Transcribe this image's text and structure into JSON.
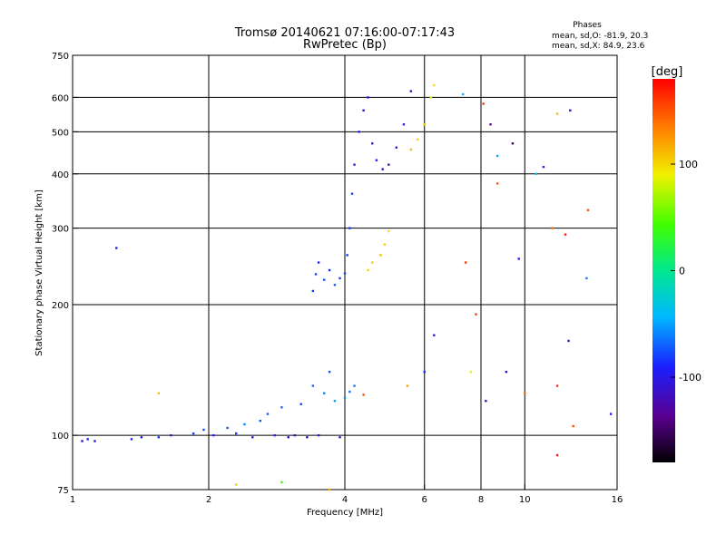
{
  "chart_data": {
    "type": "scatter",
    "title": "Tromsø 20140621 07:16:00-07:17:43",
    "subtitle": "RwPretec (Bp)",
    "xlabel": "Frequency [MHz]",
    "ylabel": "Stationary phase Virtual Height [km]",
    "x_scale": "log",
    "y_scale": "log",
    "xlim": [
      1,
      16
    ],
    "ylim": [
      75,
      750
    ],
    "x_ticks": [
      1,
      2,
      4,
      6,
      8,
      10,
      16
    ],
    "x_tick_labels": [
      "1",
      "2",
      "4",
      "6",
      "8",
      "10",
      "16"
    ],
    "y_ticks": [
      75,
      100,
      200,
      300,
      400,
      500,
      600,
      750
    ],
    "y_tick_labels": [
      "75",
      "100",
      "200",
      "300",
      "400",
      "500",
      "600",
      "750"
    ],
    "x_grid": [
      2,
      4,
      6,
      8,
      10
    ],
    "y_grid": [
      100,
      200,
      300,
      400,
      500,
      600
    ],
    "grid": true,
    "phase_stats": {
      "heading": "Phases",
      "line_o": "mean, sd,O: -81.9, 20.3",
      "line_x": "mean, sd,X:  84.9, 23.6"
    },
    "colorbar": {
      "label": "[deg]",
      "min": -180,
      "max": 180,
      "ticks": [
        100,
        0,
        -100
      ],
      "tick_labels": [
        "100",
        "0",
        "-100"
      ],
      "colormap": "rainbow"
    },
    "series": [
      {
        "values": [
          {
            "x": 1.05,
            "y": 97,
            "phase": -100
          },
          {
            "x": 1.08,
            "y": 98,
            "phase": -90
          },
          {
            "x": 1.12,
            "y": 97,
            "phase": -105
          },
          {
            "x": 1.35,
            "y": 98,
            "phase": -95
          },
          {
            "x": 1.42,
            "y": 99,
            "phase": -100
          },
          {
            "x": 1.55,
            "y": 99,
            "phase": -85
          },
          {
            "x": 1.65,
            "y": 100,
            "phase": -95
          },
          {
            "x": 1.85,
            "y": 101,
            "phase": -80
          },
          {
            "x": 1.95,
            "y": 103,
            "phase": -75
          },
          {
            "x": 2.05,
            "y": 100,
            "phase": -90
          },
          {
            "x": 2.2,
            "y": 104,
            "phase": -70
          },
          {
            "x": 2.3,
            "y": 101,
            "phase": -85
          },
          {
            "x": 2.4,
            "y": 106,
            "phase": -60
          },
          {
            "x": 2.5,
            "y": 99,
            "phase": -95
          },
          {
            "x": 2.6,
            "y": 108,
            "phase": -75
          },
          {
            "x": 2.7,
            "y": 112,
            "phase": -70
          },
          {
            "x": 2.8,
            "y": 100,
            "phase": -88
          },
          {
            "x": 2.9,
            "y": 116,
            "phase": -65
          },
          {
            "x": 3.0,
            "y": 99,
            "phase": -110
          },
          {
            "x": 3.1,
            "y": 100,
            "phase": -115
          },
          {
            "x": 3.2,
            "y": 118,
            "phase": -80
          },
          {
            "x": 3.3,
            "y": 99,
            "phase": -120
          },
          {
            "x": 3.4,
            "y": 130,
            "phase": -70
          },
          {
            "x": 3.5,
            "y": 100,
            "phase": -110
          },
          {
            "x": 3.6,
            "y": 125,
            "phase": -60
          },
          {
            "x": 3.7,
            "y": 140,
            "phase": -75
          },
          {
            "x": 3.8,
            "y": 120,
            "phase": -50
          },
          {
            "x": 3.9,
            "y": 99,
            "phase": -100
          },
          {
            "x": 4.0,
            "y": 122,
            "phase": -55
          },
          {
            "x": 4.1,
            "y": 126,
            "phase": -65
          },
          {
            "x": 4.2,
            "y": 130,
            "phase": -60
          },
          {
            "x": 4.4,
            "y": 124,
            "phase": 150
          },
          {
            "x": 3.4,
            "y": 215,
            "phase": -85
          },
          {
            "x": 3.45,
            "y": 235,
            "phase": -80
          },
          {
            "x": 3.5,
            "y": 250,
            "phase": -90
          },
          {
            "x": 3.6,
            "y": 228,
            "phase": -75
          },
          {
            "x": 3.7,
            "y": 240,
            "phase": -85
          },
          {
            "x": 3.8,
            "y": 222,
            "phase": -70
          },
          {
            "x": 3.9,
            "y": 230,
            "phase": -80
          },
          {
            "x": 4.0,
            "y": 236,
            "phase": -78
          },
          {
            "x": 4.05,
            "y": 260,
            "phase": -82
          },
          {
            "x": 4.1,
            "y": 300,
            "phase": -85
          },
          {
            "x": 4.15,
            "y": 360,
            "phase": -80
          },
          {
            "x": 4.2,
            "y": 420,
            "phase": -90
          },
          {
            "x": 4.3,
            "y": 500,
            "phase": -95
          },
          {
            "x": 4.4,
            "y": 560,
            "phase": -100
          },
          {
            "x": 4.5,
            "y": 600,
            "phase": -105
          },
          {
            "x": 4.6,
            "y": 470,
            "phase": -100
          },
          {
            "x": 4.7,
            "y": 430,
            "phase": -95
          },
          {
            "x": 4.85,
            "y": 410,
            "phase": -110
          },
          {
            "x": 5.0,
            "y": 420,
            "phase": -105
          },
          {
            "x": 5.2,
            "y": 460,
            "phase": -100
          },
          {
            "x": 5.4,
            "y": 520,
            "phase": -95
          },
          {
            "x": 5.6,
            "y": 620,
            "phase": -105
          },
          {
            "x": 4.5,
            "y": 240,
            "phase": 100
          },
          {
            "x": 4.6,
            "y": 250,
            "phase": 105
          },
          {
            "x": 4.8,
            "y": 260,
            "phase": 110
          },
          {
            "x": 4.9,
            "y": 275,
            "phase": 100
          },
          {
            "x": 5.0,
            "y": 295,
            "phase": 95
          },
          {
            "x": 5.6,
            "y": 455,
            "phase": 110
          },
          {
            "x": 5.8,
            "y": 480,
            "phase": 100
          },
          {
            "x": 6.0,
            "y": 520,
            "phase": 105
          },
          {
            "x": 6.2,
            "y": 600,
            "phase": 90
          },
          {
            "x": 6.3,
            "y": 640,
            "phase": 95
          },
          {
            "x": 7.3,
            "y": 610,
            "phase": -40
          },
          {
            "x": 8.1,
            "y": 580,
            "phase": 160
          },
          {
            "x": 8.4,
            "y": 520,
            "phase": -130
          },
          {
            "x": 8.7,
            "y": 440,
            "phase": -50
          },
          {
            "x": 9.4,
            "y": 470,
            "phase": -150
          },
          {
            "x": 11.0,
            "y": 415,
            "phase": -90
          },
          {
            "x": 11.8,
            "y": 550,
            "phase": 110
          },
          {
            "x": 12.6,
            "y": 560,
            "phase": -120
          },
          {
            "x": 8.7,
            "y": 380,
            "phase": 150
          },
          {
            "x": 10.6,
            "y": 400,
            "phase": -30
          },
          {
            "x": 9.7,
            "y": 255,
            "phase": -100
          },
          {
            "x": 11.5,
            "y": 300,
            "phase": 140
          },
          {
            "x": 12.3,
            "y": 290,
            "phase": 170
          },
          {
            "x": 13.8,
            "y": 330,
            "phase": 150
          },
          {
            "x": 7.8,
            "y": 190,
            "phase": 160
          },
          {
            "x": 6.3,
            "y": 170,
            "phase": -100
          },
          {
            "x": 7.4,
            "y": 250,
            "phase": 160
          },
          {
            "x": 7.6,
            "y": 140,
            "phase": 90
          },
          {
            "x": 8.2,
            "y": 120,
            "phase": -120
          },
          {
            "x": 9.1,
            "y": 140,
            "phase": -110
          },
          {
            "x": 10.0,
            "y": 125,
            "phase": 140
          },
          {
            "x": 11.8,
            "y": 130,
            "phase": 160
          },
          {
            "x": 12.5,
            "y": 165,
            "phase": -100
          },
          {
            "x": 13.7,
            "y": 230,
            "phase": -60
          },
          {
            "x": 15.5,
            "y": 112,
            "phase": -100
          },
          {
            "x": 12.8,
            "y": 105,
            "phase": 150
          },
          {
            "x": 11.8,
            "y": 90,
            "phase": 170
          },
          {
            "x": 6.0,
            "y": 140,
            "phase": -90
          },
          {
            "x": 5.5,
            "y": 130,
            "phase": 120
          },
          {
            "x": 1.25,
            "y": 270,
            "phase": -90
          },
          {
            "x": 1.55,
            "y": 125,
            "phase": 110
          },
          {
            "x": 3.7,
            "y": 75,
            "phase": 120
          },
          {
            "x": 2.9,
            "y": 78,
            "phase": 40
          },
          {
            "x": 2.3,
            "y": 77,
            "phase": 100
          }
        ]
      }
    ]
  }
}
